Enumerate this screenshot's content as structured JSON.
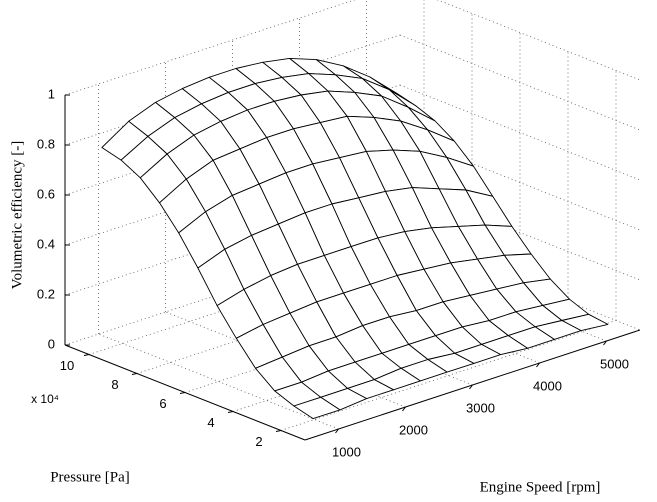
{
  "chart_data": {
    "type": "surface",
    "xlabel": "Engine Speed [rpm]",
    "ylabel": "Pressure [Pa]",
    "zlabel": "Volumetric efficiency [-]",
    "y_exponent_label": "x 10⁴",
    "x": [
      800,
      1200,
      1600,
      2000,
      2400,
      2800,
      3200,
      3600,
      4000,
      4400,
      4800,
      5200
    ],
    "y": [
      15000,
      23000,
      31000,
      39000,
      47000,
      55000,
      63000,
      71000,
      79000,
      87000,
      95000,
      103000
    ],
    "z": [
      [
        0.04,
        0.04,
        0.05,
        0.05,
        0.05,
        0.05,
        0.05,
        0.05,
        0.04,
        0.04,
        0.04,
        0.03
      ],
      [
        0.06,
        0.06,
        0.06,
        0.06,
        0.07,
        0.07,
        0.06,
        0.06,
        0.06,
        0.06,
        0.05,
        0.04
      ],
      [
        0.09,
        0.09,
        0.1,
        0.1,
        0.1,
        0.1,
        0.1,
        0.1,
        0.09,
        0.09,
        0.08,
        0.07
      ],
      [
        0.15,
        0.16,
        0.17,
        0.17,
        0.18,
        0.18,
        0.17,
        0.17,
        0.16,
        0.15,
        0.14,
        0.12
      ],
      [
        0.24,
        0.26,
        0.27,
        0.28,
        0.28,
        0.28,
        0.28,
        0.27,
        0.26,
        0.24,
        0.22,
        0.19
      ],
      [
        0.34,
        0.37,
        0.39,
        0.4,
        0.4,
        0.4,
        0.4,
        0.39,
        0.37,
        0.34,
        0.31,
        0.27
      ],
      [
        0.46,
        0.5,
        0.52,
        0.53,
        0.54,
        0.54,
        0.53,
        0.52,
        0.5,
        0.46,
        0.42,
        0.36
      ],
      [
        0.57,
        0.62,
        0.65,
        0.66,
        0.67,
        0.67,
        0.66,
        0.65,
        0.62,
        0.58,
        0.52,
        0.45
      ],
      [
        0.66,
        0.72,
        0.76,
        0.77,
        0.78,
        0.78,
        0.77,
        0.76,
        0.72,
        0.67,
        0.6,
        0.52
      ],
      [
        0.73,
        0.79,
        0.83,
        0.85,
        0.86,
        0.86,
        0.85,
        0.83,
        0.79,
        0.74,
        0.66,
        0.57
      ],
      [
        0.77,
        0.83,
        0.87,
        0.89,
        0.9,
        0.9,
        0.89,
        0.87,
        0.83,
        0.78,
        0.7,
        0.6
      ],
      [
        0.79,
        0.86,
        0.9,
        0.92,
        0.93,
        0.93,
        0.92,
        0.9,
        0.86,
        0.8,
        0.72,
        0.62
      ]
    ],
    "xlim": [
      500,
      5500
    ],
    "xticks": [
      1000,
      2000,
      3000,
      4000,
      5000
    ],
    "ylim": [
      10000,
      110000
    ],
    "yticks": [
      {
        "value": 20000,
        "label": "2"
      },
      {
        "value": 40000,
        "label": "4"
      },
      {
        "value": 60000,
        "label": "6"
      },
      {
        "value": 80000,
        "label": "8"
      },
      {
        "value": 100000,
        "label": "10"
      }
    ],
    "zlim": [
      0,
      1
    ],
    "zticks": [
      0,
      0.2,
      0.4,
      0.6,
      0.8,
      1
    ],
    "grid": true,
    "mesh_color": "#000000",
    "face_color": "#ffffff"
  }
}
